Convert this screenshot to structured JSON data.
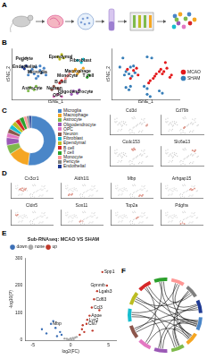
{
  "letters": [
    "A",
    "B",
    "C",
    "D",
    "E",
    "F"
  ],
  "chart_data": [
    {
      "type": "scatter",
      "x_label": "tSNE_1",
      "y_label": "tSNE_2",
      "xlim": [
        -45,
        45
      ],
      "ylim": [
        -45,
        45
      ],
      "tick_labels": false,
      "series": [
        {
          "name": "Microglia",
          "color": "#4a86c8",
          "x": [
            -24,
            -20,
            -16,
            -22,
            -18,
            -14,
            -26,
            -12,
            -20,
            -16,
            -10,
            -28
          ],
          "values": [
            8,
            12,
            6,
            0,
            -4,
            2,
            4,
            10,
            -8,
            14,
            -2,
            -2
          ]
        },
        {
          "name": "Ependymal",
          "color": "#bcbd22",
          "x": [
            2,
            6,
            8,
            4
          ],
          "values": [
            30,
            34,
            28,
            26
          ]
        },
        {
          "name": "Fibroblast",
          "color": "#17becf",
          "x": [
            22,
            26,
            28
          ],
          "values": [
            24,
            20,
            26
          ]
        },
        {
          "name": "Macrophage",
          "color": "#f5a623",
          "x": [
            20,
            24,
            28,
            22,
            18
          ],
          "values": [
            8,
            4,
            10,
            0,
            4
          ]
        },
        {
          "name": "T cell",
          "color": "#2ca02c",
          "x": [
            32,
            34
          ],
          "values": [
            -6,
            -2
          ]
        },
        {
          "name": "Pericyte",
          "color": "#7f7f7f",
          "x": [
            -30,
            -34
          ],
          "values": [
            28,
            24
          ]
        },
        {
          "name": "Endothelial",
          "color": "#1f3a93",
          "x": [
            -34,
            -30,
            -32
          ],
          "values": [
            12,
            14,
            9
          ]
        },
        {
          "name": "Astrocyte",
          "color": "#7fba4c",
          "x": [
            -26,
            -22,
            -28,
            -20
          ],
          "values": [
            -24,
            -28,
            -30,
            -22
          ]
        },
        {
          "name": "Neuron",
          "color": "#8c564b",
          "x": [
            -2,
            2,
            -4
          ],
          "values": [
            -22,
            -26,
            -28
          ]
        },
        {
          "name": "Oligodendrocyte",
          "color": "#9b59b6",
          "x": [
            18,
            22,
            24,
            16
          ],
          "values": [
            -30,
            -34,
            -28,
            -36
          ]
        },
        {
          "name": "OPC",
          "color": "#e377c2",
          "x": [
            2,
            6,
            -2
          ],
          "values": [
            -36,
            -40,
            -40
          ]
        },
        {
          "name": "B cell",
          "color": "#d62728",
          "x": [
            6,
            4
          ],
          "values": [
            -12,
            -16
          ]
        },
        {
          "name": "Monocyte",
          "color": "#ff9896",
          "x": [
            12,
            14,
            10
          ],
          "values": [
            -4,
            0,
            -8
          ]
        }
      ]
    },
    {
      "type": "scatter",
      "x_label": "tSNE_1",
      "y_label": "tSNE_2",
      "xlim": [
        -45,
        45
      ],
      "ylim": [
        -45,
        45
      ],
      "tick_labels": false,
      "legend": "right",
      "series": [
        {
          "name": "MCAO",
          "color": "#e41a1c",
          "x": [
            20,
            24,
            28,
            22,
            18,
            12,
            14,
            10,
            32,
            34,
            -24,
            -16,
            -20,
            6,
            4,
            -12,
            -10,
            26
          ],
          "values": [
            8,
            4,
            10,
            0,
            4,
            -4,
            0,
            -8,
            -6,
            -2,
            8,
            6,
            -8,
            -12,
            -16,
            10,
            -2,
            20
          ]
        },
        {
          "name": "SHAM",
          "color": "#377eb8",
          "x": [
            -20,
            -22,
            -18,
            -14,
            -26,
            -16,
            -28,
            -26,
            -22,
            -2,
            2,
            18,
            22,
            2,
            6,
            -30,
            -34,
            2,
            8,
            -20
          ],
          "values": [
            12,
            0,
            -4,
            2,
            4,
            14,
            -2,
            -24,
            -28,
            -22,
            -26,
            -30,
            -34,
            -36,
            -40,
            28,
            12,
            30,
            28,
            -22
          ]
        }
      ]
    },
    {
      "type": "doughnut",
      "legend": "right",
      "categories": [
        "Microglia",
        "Macrophage",
        "Astrocyte",
        "Oligodendrocyte",
        "OPC",
        "Neuron",
        "Fibroblast",
        "Ependymal",
        "B cell",
        "T cell",
        "Monocyte",
        "Pericyte",
        "Endothelial"
      ],
      "values": [
        52,
        14,
        6,
        5,
        3,
        3,
        3,
        3,
        3,
        3,
        2,
        1.5,
        1.5
      ],
      "colors": [
        "#4a86c8",
        "#f5a623",
        "#7fba4c",
        "#9b59b6",
        "#e377c2",
        "#8c564b",
        "#17becf",
        "#bcbd22",
        "#d62728",
        "#2ca02c",
        "#ff9896",
        "#7f7f7f",
        "#1f3a93"
      ]
    },
    {
      "type": "scatter",
      "title": "Cd3d",
      "xlim": [
        -45,
        45
      ],
      "ylim": [
        -45,
        45
      ],
      "tick_labels": false,
      "series": [
        {
          "color": "#e0452b",
          "x": [
            32,
            34
          ],
          "values": [
            -6,
            -2
          ]
        }
      ]
    },
    {
      "type": "scatter",
      "title": "Cd79b",
      "xlim": [
        -45,
        45
      ],
      "ylim": [
        -45,
        45
      ],
      "tick_labels": false,
      "series": [
        {
          "color": "#e0452b",
          "x": [
            6,
            4
          ],
          "values": [
            -12,
            -16
          ]
        }
      ]
    },
    {
      "type": "scatter",
      "title": "Ccdc153",
      "xlim": [
        -45,
        45
      ],
      "ylim": [
        -45,
        45
      ],
      "tick_labels": false,
      "series": [
        {
          "color": "#e0452b",
          "x": [
            2,
            6,
            8,
            4
          ],
          "values": [
            30,
            34,
            28,
            26
          ]
        }
      ]
    },
    {
      "type": "scatter",
      "title": "Slc6a13",
      "xlim": [
        -45,
        45
      ],
      "ylim": [
        -45,
        45
      ],
      "tick_labels": false,
      "series": [
        {
          "color": "#e0452b",
          "x": [
            22,
            26,
            28
          ],
          "values": [
            24,
            20,
            26
          ]
        }
      ]
    },
    {
      "type": "scatter",
      "title": "Cx3cr1",
      "xlim": [
        -45,
        45
      ],
      "ylim": [
        -45,
        45
      ],
      "tick_labels": false,
      "series": [
        {
          "color": "#e0452b",
          "x": [
            -24,
            -20,
            -16,
            -22,
            -18,
            -14,
            -26,
            -12
          ],
          "values": [
            8,
            12,
            6,
            0,
            -4,
            2,
            4,
            10
          ]
        }
      ]
    },
    {
      "type": "scatter",
      "title": "Aldh1l1",
      "xlim": [
        -45,
        45
      ],
      "ylim": [
        -45,
        45
      ],
      "tick_labels": false,
      "series": [
        {
          "color": "#e0452b",
          "x": [
            -26,
            -22,
            -28,
            -20
          ],
          "values": [
            -24,
            -28,
            -30,
            -22
          ]
        }
      ]
    },
    {
      "type": "scatter",
      "title": "Mbp",
      "xlim": [
        -45,
        45
      ],
      "ylim": [
        -45,
        45
      ],
      "tick_labels": false,
      "series": [
        {
          "color": "#e0452b",
          "x": [
            18,
            22,
            24,
            16
          ],
          "values": [
            -30,
            -34,
            -28,
            -36
          ]
        }
      ]
    },
    {
      "type": "scatter",
      "title": "Arhgap15",
      "xlim": [
        -45,
        45
      ],
      "ylim": [
        -45,
        45
      ],
      "tick_labels": false,
      "series": [
        {
          "color": "#e0452b",
          "x": [
            20,
            24,
            28,
            22,
            18
          ],
          "values": [
            8,
            4,
            10,
            0,
            4
          ]
        }
      ]
    },
    {
      "type": "scatter",
      "title": "Cldn5",
      "xlim": [
        -45,
        45
      ],
      "ylim": [
        -45,
        45
      ],
      "tick_labels": false,
      "series": [
        {
          "color": "#e0452b",
          "x": [
            -34,
            -30,
            -32
          ],
          "values": [
            12,
            14,
            9
          ]
        }
      ]
    },
    {
      "type": "scatter",
      "title": "Sox11",
      "xlim": [
        -45,
        45
      ],
      "ylim": [
        -45,
        45
      ],
      "tick_labels": false,
      "series": [
        {
          "color": "#e0452b",
          "x": [
            -2,
            2,
            -4
          ],
          "values": [
            -22,
            -26,
            -28
          ]
        }
      ]
    },
    {
      "type": "scatter",
      "title": "Top2a",
      "xlim": [
        -45,
        45
      ],
      "ylim": [
        -45,
        45
      ],
      "tick_labels": false,
      "series": [
        {
          "color": "#e0452b",
          "x": [
            12,
            14,
            10
          ],
          "values": [
            -4,
            0,
            -8
          ]
        }
      ]
    },
    {
      "type": "scatter",
      "title": "Pdgfra",
      "xlim": [
        -45,
        45
      ],
      "ylim": [
        -45,
        45
      ],
      "tick_labels": false,
      "series": [
        {
          "color": "#e0452b",
          "x": [
            2,
            6,
            -2
          ],
          "values": [
            -36,
            -40,
            -40
          ]
        }
      ]
    },
    {
      "type": "scatter",
      "title": "Sub-RNAseq: MCAO VS SHAM",
      "x_label": "log2(FC)",
      "y_label": "-log10(P)",
      "legend": "top-left",
      "xlim": [
        -6,
        6
      ],
      "xticks": [
        -5,
        0,
        5
      ],
      "ylim": [
        0,
        300
      ],
      "yticks": [
        0,
        100,
        200,
        300
      ],
      "series": [
        {
          "name": "down",
          "color": "#3b6fb6",
          "x": [
            -1.4,
            -2.0,
            -2.6,
            -3.2,
            -1.8,
            -1.2,
            -2.3,
            -3.8
          ],
          "values": [
            30,
            45,
            60,
            25,
            15,
            20,
            70,
            40
          ]
        },
        {
          "name": "none",
          "color": "#aaaaaa",
          "x": [
            -0.5,
            0.3,
            -0.2,
            0.6,
            0.1,
            -0.8,
            0.8,
            -0.3,
            0.4,
            0
          ],
          "values": [
            5,
            8,
            3,
            10,
            2,
            6,
            12,
            1,
            4,
            7
          ]
        },
        {
          "name": "up",
          "color": "#c0392b",
          "x": [
            1.5,
            2.1,
            2.8,
            3.5,
            4.2,
            1.8,
            2.5,
            3.1,
            1.2,
            2.2,
            4.8,
            3.8,
            1.6,
            2.9
          ],
          "values": [
            40,
            60,
            120,
            180,
            250,
            30,
            90,
            150,
            20,
            75,
            200,
            110,
            55,
            35
          ]
        }
      ],
      "annotations": [
        {
          "text": "Spp1",
          "x": 4.2,
          "y": 250
        },
        {
          "text": "Gpnmb",
          "x": 4.8,
          "y": 200
        },
        {
          "text": "Lgals3",
          "x": 3.5,
          "y": 180
        },
        {
          "text": "Cd63",
          "x": 3.1,
          "y": 150
        },
        {
          "text": "Ccl3",
          "x": 2.8,
          "y": 120
        },
        {
          "text": "Apoe",
          "x": 2.5,
          "y": 90
        },
        {
          "text": "Lyz2",
          "x": 2.2,
          "y": 75
        },
        {
          "text": "Cst7",
          "x": 2.1,
          "y": 60
        },
        {
          "text": "Mbp",
          "x": -2.6,
          "y": 60
        }
      ]
    }
  ],
  "chord_diagram": {
    "colors": [
      "#4a86c8",
      "#f5a623",
      "#7fba4c",
      "#9b59b6",
      "#e377c2",
      "#8c564b",
      "#17becf",
      "#bcbd22",
      "#d62728",
      "#2ca02c",
      "#ff9896",
      "#7f7f7f",
      "#1f3a93"
    ],
    "links": [
      [
        0,
        1
      ],
      [
        0,
        2
      ],
      [
        0,
        3
      ],
      [
        0,
        5
      ],
      [
        0,
        8
      ],
      [
        0,
        10
      ],
      [
        1,
        2
      ],
      [
        1,
        4
      ],
      [
        1,
        6
      ],
      [
        1,
        9
      ],
      [
        2,
        7
      ],
      [
        2,
        11
      ],
      [
        3,
        6
      ],
      [
        3,
        12
      ],
      [
        4,
        8
      ],
      [
        5,
        9
      ],
      [
        5,
        12
      ],
      [
        6,
        10
      ],
      [
        7,
        11
      ],
      [
        8,
        12
      ],
      [
        9,
        11
      ],
      [
        10,
        12
      ],
      [
        0,
        7
      ],
      [
        1,
        11
      ]
    ]
  }
}
